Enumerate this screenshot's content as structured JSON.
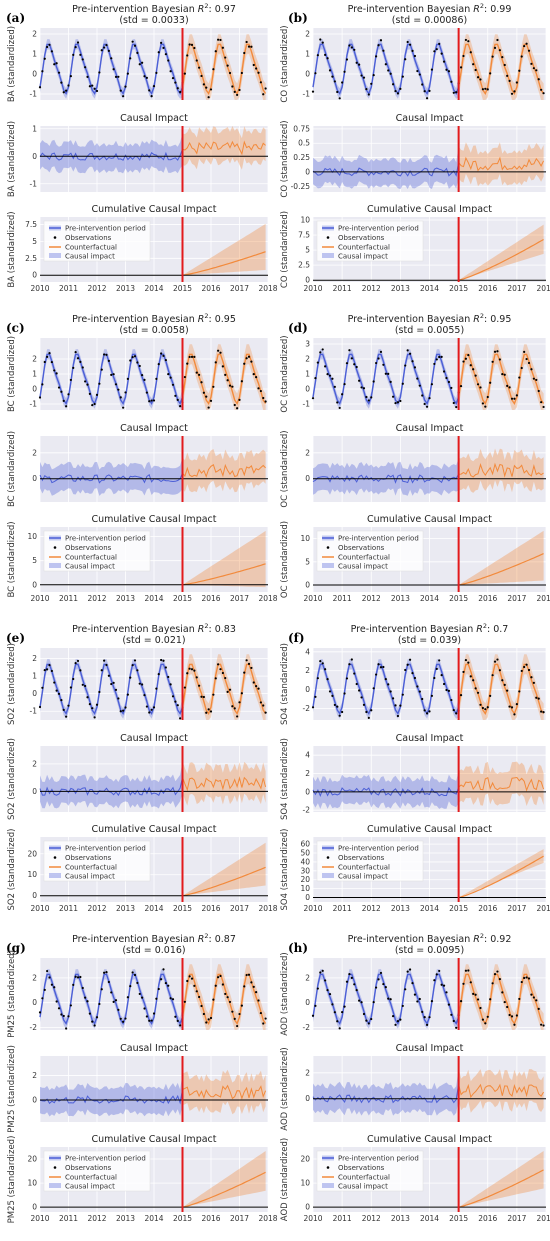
{
  "figure": {
    "panels": [
      {
        "letter": "(a)",
        "var": "BA",
        "title_prefix": "Pre-intervention Bayesian ",
        "r2_symbol": "R",
        "r2_sup": "2",
        "r2_value": ": 0.97",
        "std_text": "(std = 0.0033)"
      },
      {
        "letter": "(b)",
        "var": "CO",
        "title_prefix": "Pre-intervention Bayesian ",
        "r2_symbol": "R",
        "r2_sup": "2",
        "r2_value": ": 0.99",
        "std_text": "(std = 0.00086)"
      },
      {
        "letter": "(c)",
        "var": "BC",
        "title_prefix": "Pre-intervention Bayesian ",
        "r2_symbol": "R",
        "r2_sup": "2",
        "r2_value": ": 0.95",
        "std_text": "(std = 0.0058)"
      },
      {
        "letter": "(d)",
        "var": "OC",
        "title_prefix": "Pre-intervention Bayesian ",
        "r2_symbol": "R",
        "r2_sup": "2",
        "r2_value": ": 0.95",
        "std_text": "(std = 0.0055)"
      },
      {
        "letter": "(e)",
        "var": "SO2",
        "title_prefix": "Pre-intervention Bayesian ",
        "r2_symbol": "R",
        "r2_sup": "2",
        "r2_value": ": 0.83",
        "std_text": "(std = 0.021)"
      },
      {
        "letter": "(f)",
        "var": "SO4",
        "title_prefix": "Pre-intervention Bayesian ",
        "r2_symbol": "R",
        "r2_sup": "2",
        "r2_value": ": 0.7",
        "std_text": "(std = 0.039)"
      },
      {
        "letter": "(g)",
        "var": "PM25",
        "title_prefix": "Pre-intervention Bayesian ",
        "r2_symbol": "R",
        "r2_sup": "2",
        "r2_value": ": 0.87",
        "std_text": "(std = 0.016)"
      },
      {
        "letter": "(h)",
        "var": "AOD",
        "title_prefix": "Pre-intervention Bayesian ",
        "r2_symbol": "R",
        "r2_sup": "2",
        "r2_value": ": 0.92",
        "std_text": "(std = 0.0095)"
      }
    ],
    "causal_title": "Causal Impact",
    "cumulative_title": "Cumulative Causal Impact",
    "ylabel_suffix": " (standardized)",
    "legend": [
      "Pre-intervention period",
      "Observations",
      "Counterfactual",
      "Causal impact"
    ],
    "x_ticks": [
      "2010",
      "2011",
      "2012",
      "2013",
      "2014",
      "2015",
      "2016",
      "2017",
      "2018"
    ],
    "colors": {
      "pre": "#4c5fd6",
      "post": "#f28a3c",
      "intervention": "#e31a1c",
      "grid": "#ffffff",
      "axes_bg": "#eaeaf2"
    }
  },
  "chart_data": [
    {
      "type": "line",
      "panel": "(a)",
      "series": "BA",
      "intervention": 2015,
      "top": {
        "yticks": [
          -1,
          0,
          1,
          2
        ],
        "ylim": [
          -1.3,
          2.3
        ]
      },
      "middle": {
        "yticks": [
          -1,
          0,
          1
        ],
        "ylim": [
          -1.3,
          1.1
        ]
      },
      "bottom": {
        "yticks": [
          0.0,
          2.5,
          5.0,
          7.5
        ],
        "ylim": [
          -1.0,
          8.6
        ],
        "cumulative_end": 3.6,
        "band_end": [
          0.8,
          7.8
        ]
      },
      "legend_loc": "upper left"
    },
    {
      "type": "line",
      "panel": "(b)",
      "series": "CO",
      "intervention": 2015,
      "top": {
        "yticks": [
          -1,
          0,
          1,
          2
        ],
        "ylim": [
          -1.3,
          2.3
        ]
      },
      "middle": {
        "yticks": [
          -0.25,
          0.0,
          0.25,
          0.5,
          0.75
        ],
        "ylim": [
          -0.35,
          0.8
        ]
      },
      "bottom": {
        "yticks": [
          0.0,
          2.5,
          5.0,
          7.5,
          10.0
        ],
        "ylim": [
          -0.3,
          10.5
        ],
        "cumulative_end": 7.0,
        "band_end": [
          4.5,
          9.5
        ]
      },
      "legend_loc": "upper left"
    },
    {
      "type": "line",
      "panel": "(c)",
      "series": "BC",
      "intervention": 2015,
      "top": {
        "yticks": [
          -1,
          0,
          1,
          2
        ],
        "ylim": [
          -1.4,
          3.4
        ]
      },
      "middle": {
        "yticks": [
          -2,
          0,
          2
        ],
        "ylim": [
          -1.8,
          3.3
        ]
      },
      "bottom": {
        "yticks": [
          0,
          5,
          10
        ],
        "ylim": [
          -1.5,
          12.0
        ],
        "cumulative_end": 4.5,
        "band_end": [
          -0.5,
          11.5
        ]
      },
      "legend_loc": "upper left"
    },
    {
      "type": "line",
      "panel": "(d)",
      "series": "OC",
      "intervention": 2015,
      "top": {
        "yticks": [
          -1,
          0,
          1,
          2,
          3
        ],
        "ylim": [
          -1.4,
          3.4
        ]
      },
      "middle": {
        "yticks": [
          -2,
          0,
          2
        ],
        "ylim": [
          -1.8,
          3.3
        ]
      },
      "bottom": {
        "yticks": [
          0,
          5,
          10
        ],
        "ylim": [
          -1.5,
          12.5
        ],
        "cumulative_end": 7.0,
        "band_end": [
          1.0,
          12.0
        ]
      },
      "legend_loc": "upper left"
    },
    {
      "type": "line",
      "panel": "(e)",
      "series": "SO2",
      "intervention": 2015,
      "top": {
        "yticks": [
          -1,
          0,
          1,
          2
        ],
        "ylim": [
          -1.5,
          2.6
        ]
      },
      "middle": {
        "yticks": [
          0,
          2
        ],
        "ylim": [
          -1.5,
          3.3
        ]
      },
      "bottom": {
        "yticks": [
          0,
          10,
          20
        ],
        "ylim": [
          -3,
          28
        ],
        "cumulative_end": 14,
        "band_end": [
          5,
          26
        ]
      },
      "legend_loc": "upper left"
    },
    {
      "type": "line",
      "panel": "(f)",
      "series": "SO4",
      "intervention": 2015,
      "top": {
        "yticks": [
          -2,
          0,
          2,
          4
        ],
        "ylim": [
          -3.2,
          4.4
        ]
      },
      "middle": {
        "yticks": [
          -2,
          0,
          2,
          4
        ],
        "ylim": [
          -2.2,
          5.0
        ]
      },
      "bottom": {
        "yticks": [
          0,
          10,
          20,
          30,
          40,
          50,
          60
        ],
        "ylim": [
          -5,
          68
        ],
        "cumulative_end": 48,
        "band_end": [
          40,
          56
        ]
      },
      "legend_loc": "upper left"
    },
    {
      "type": "line",
      "panel": "(g)",
      "series": "PM25",
      "intervention": 2015,
      "top": {
        "yticks": [
          -2,
          0,
          2
        ],
        "ylim": [
          -2.2,
          3.6
        ]
      },
      "middle": {
        "yticks": [
          -2,
          0,
          2
        ],
        "ylim": [
          -1.8,
          3.6
        ]
      },
      "bottom": {
        "yticks": [
          0,
          10,
          20
        ],
        "ylim": [
          -2,
          25
        ],
        "cumulative_end": 15,
        "band_end": [
          7,
          24
        ]
      },
      "legend_loc": "upper left"
    },
    {
      "type": "line",
      "panel": "(h)",
      "series": "AOD",
      "intervention": 2015,
      "top": {
        "yticks": [
          -2,
          0,
          2
        ],
        "ylim": [
          -2.2,
          3.6
        ]
      },
      "middle": {
        "yticks": [
          -2,
          0,
          2
        ],
        "ylim": [
          -1.8,
          3.3
        ]
      },
      "bottom": {
        "yticks": [
          0,
          10,
          20
        ],
        "ylim": [
          -2,
          25
        ],
        "cumulative_end": 16,
        "band_end": [
          8,
          24
        ]
      },
      "legend_loc": "upper left"
    }
  ]
}
